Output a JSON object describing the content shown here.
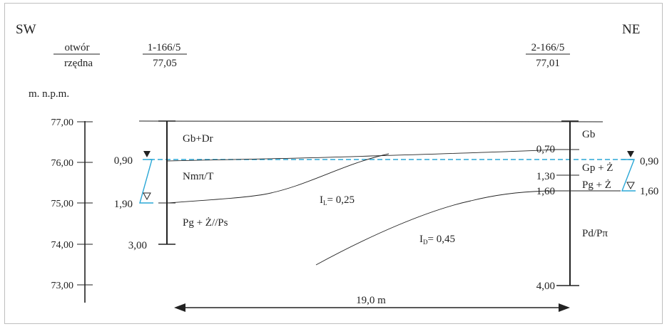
{
  "side_left": "SW",
  "side_right": "NE",
  "header": {
    "label_top": "otwór",
    "label_bottom": "rzędna",
    "bh1_id": "1-166/5",
    "bh1_elev": "77,05",
    "bh2_id": "2-166/5",
    "bh2_elev": "77,01"
  },
  "elev_axis": {
    "unit": "m. n.p.m.",
    "ticks": [
      "77,00",
      "76,00",
      "75,00",
      "74,00",
      "73,00"
    ]
  },
  "borehole1": {
    "depths": [
      "0,90",
      "1,90",
      "3,00"
    ],
    "layers": [
      "Gb+Dr",
      "Nmπ/T",
      "Pg + Ż//Ps"
    ]
  },
  "borehole2": {
    "depths": [
      "0,70",
      "1,30",
      "1,60",
      "4,00"
    ],
    "water_depths": [
      "0,90",
      "1,60"
    ],
    "layers": [
      "Gb",
      "Gp + Ż",
      "Pg + Ż",
      "Pd/Pπ"
    ]
  },
  "zones": {
    "il_prefix": "I",
    "il_sub": "L",
    "il_value": "= 0,25",
    "id_prefix": "I",
    "id_sub": "D",
    "id_value": "= 0,45"
  },
  "distance": "19,0 m",
  "colors": {
    "line": "#222222",
    "water": "#2aa7d6",
    "border": "#bfbfbf"
  }
}
